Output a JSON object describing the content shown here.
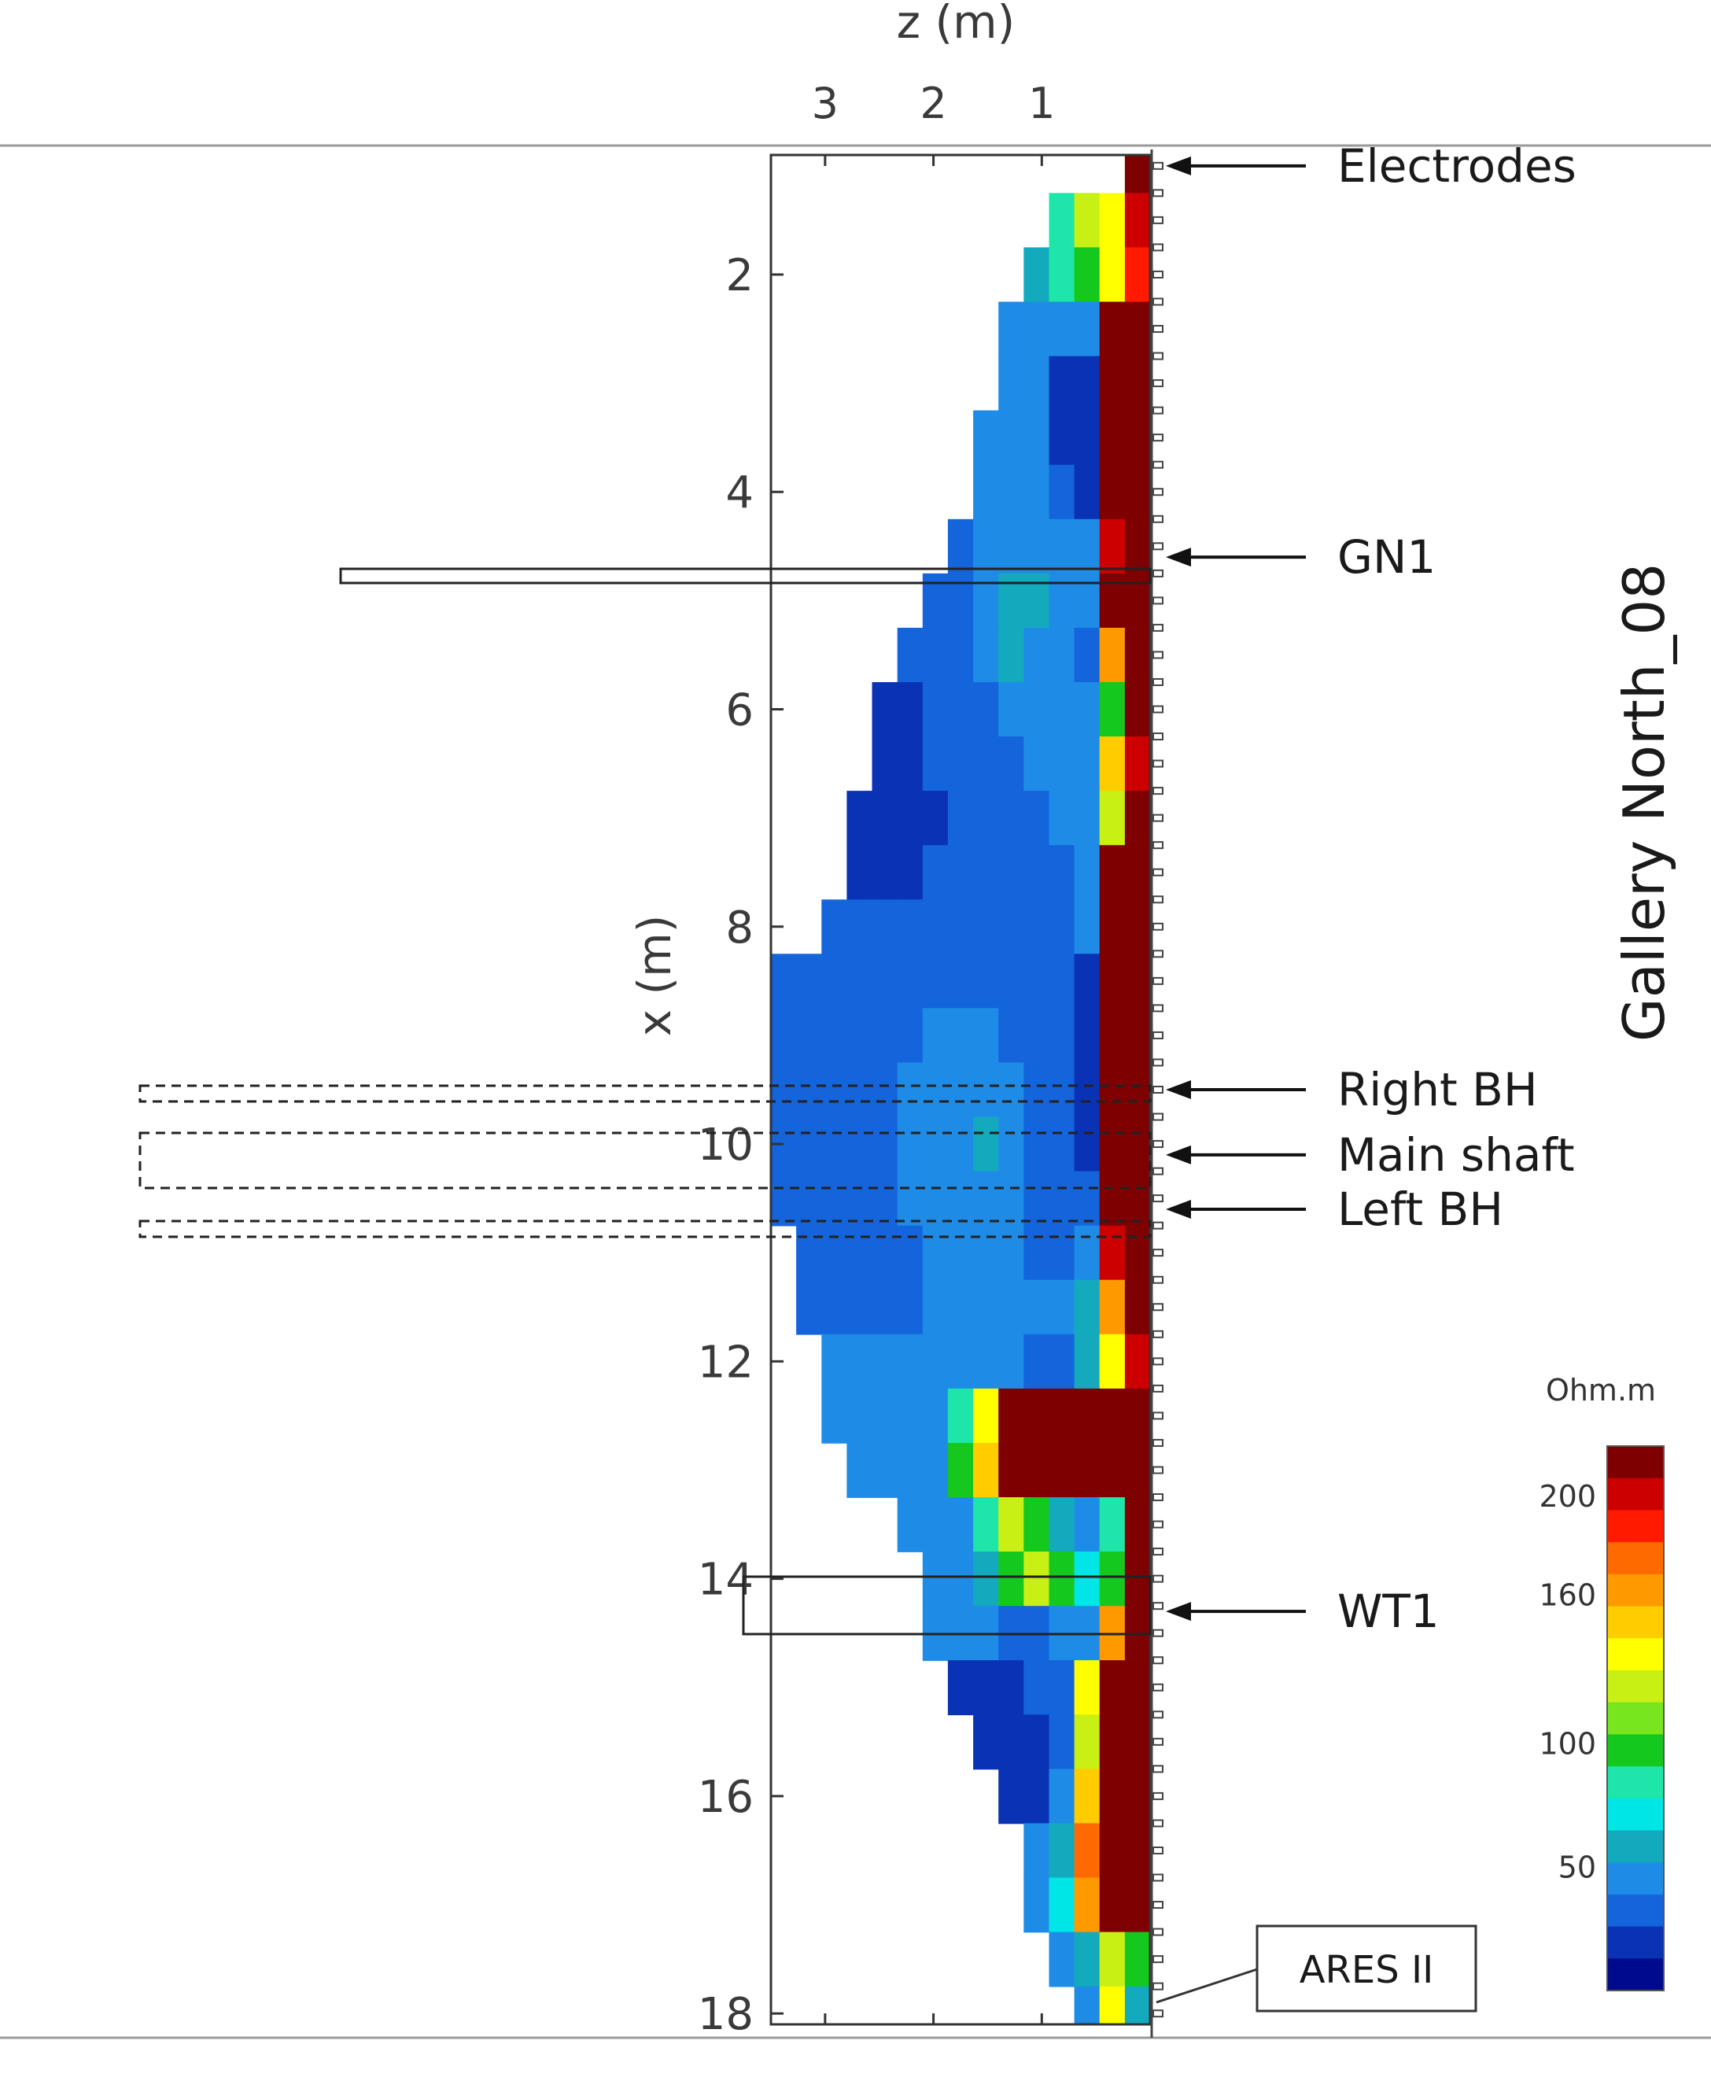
{
  "chart_data": {
    "type": "heatmap",
    "title": "",
    "side_label": "Gallery North_08",
    "xlabel": "z (m)",
    "ylabel": "x (m)",
    "x_ticks": [
      3,
      2,
      1
    ],
    "y_ticks": [
      2,
      4,
      6,
      8,
      10,
      12,
      14,
      16,
      18
    ],
    "xlim": [
      3.5,
      0
    ],
    "ylim": [
      0.9,
      18.1
    ],
    "colorbar": {
      "title": "Ohm.m",
      "tick_labels": [
        "200",
        "160",
        "100",
        "50"
      ],
      "tick_values": [
        200,
        160,
        100,
        50
      ],
      "range": [
        0,
        220
      ],
      "colors": [
        "#7f0000",
        "#cc0000",
        "#ff1a00",
        "#ff6a00",
        "#ff9900",
        "#ffcc00",
        "#ffff00",
        "#c8f014",
        "#78e61e",
        "#14c81e",
        "#1ee6aa",
        "#00e6e6",
        "#14aabe",
        "#1e8ce6",
        "#1464dc",
        "#0a32b4",
        "#000a8c"
      ]
    },
    "annotations": [
      {
        "label": "Electrodes",
        "x": 1.0
      },
      {
        "label": "GN1",
        "x": 4.6
      },
      {
        "label": "Right BH",
        "x": 9.5
      },
      {
        "label": "Main shaft",
        "x": 10.1
      },
      {
        "label": "Left BH",
        "x": 10.6
      },
      {
        "label": "WT1",
        "x": 14.3
      }
    ],
    "instrument_label": "ARES II",
    "resistivity_profile": [
      {
        "x": 1.0,
        "values": [
          0,
          0,
          0,
          0,
          0,
          0,
          0,
          0,
          0,
          0,
          0,
          0,
          0,
          0,
          220
        ]
      },
      {
        "x": 1.5,
        "values": [
          0,
          0,
          0,
          0,
          0,
          0,
          0,
          0,
          0,
          0,
          0,
          90,
          120,
          140,
          200
        ]
      },
      {
        "x": 2.0,
        "values": [
          0,
          0,
          0,
          0,
          0,
          0,
          0,
          0,
          0,
          0,
          60,
          80,
          100,
          130,
          190
        ]
      },
      {
        "x": 2.5,
        "values": [
          0,
          0,
          0,
          0,
          0,
          0,
          0,
          0,
          0,
          40,
          45,
          45,
          40,
          220,
          220
        ]
      },
      {
        "x": 3.0,
        "values": [
          0,
          0,
          0,
          0,
          0,
          0,
          0,
          0,
          0,
          40,
          40,
          20,
          20,
          220,
          220
        ]
      },
      {
        "x": 3.5,
        "values": [
          0,
          0,
          0,
          0,
          0,
          0,
          0,
          0,
          40,
          40,
          40,
          20,
          20,
          220,
          220
        ]
      },
      {
        "x": 4.0,
        "values": [
          0,
          0,
          0,
          0,
          0,
          0,
          0,
          0,
          45,
          45,
          40,
          35,
          20,
          220,
          220
        ]
      },
      {
        "x": 4.5,
        "values": [
          0,
          0,
          0,
          0,
          0,
          0,
          0,
          35,
          40,
          45,
          45,
          40,
          45,
          200,
          220
        ]
      },
      {
        "x": 5.0,
        "values": [
          0,
          0,
          0,
          0,
          0,
          0,
          35,
          35,
          40,
          60,
          55,
          40,
          45,
          220,
          220
        ]
      },
      {
        "x": 5.5,
        "values": [
          0,
          0,
          0,
          0,
          0,
          30,
          30,
          35,
          40,
          55,
          45,
          40,
          35,
          160,
          220
        ]
      },
      {
        "x": 6.0,
        "values": [
          0,
          0,
          0,
          0,
          25,
          25,
          30,
          35,
          35,
          40,
          40,
          40,
          40,
          100,
          220
        ]
      },
      {
        "x": 6.5,
        "values": [
          0,
          0,
          0,
          0,
          15,
          20,
          30,
          30,
          30,
          35,
          40,
          40,
          45,
          150,
          200
        ]
      },
      {
        "x": 7.0,
        "values": [
          0,
          0,
          0,
          15,
          15,
          20,
          25,
          30,
          30,
          30,
          35,
          40,
          45,
          120,
          220
        ]
      },
      {
        "x": 7.5,
        "values": [
          0,
          0,
          0,
          15,
          20,
          25,
          30,
          30,
          30,
          30,
          35,
          35,
          40,
          220,
          220
        ]
      },
      {
        "x": 8.0,
        "values": [
          0,
          0,
          30,
          30,
          30,
          30,
          30,
          30,
          30,
          30,
          30,
          35,
          40,
          220,
          220
        ]
      },
      {
        "x": 8.5,
        "values": [
          30,
          30,
          30,
          30,
          30,
          30,
          30,
          35,
          35,
          30,
          30,
          35,
          20,
          220,
          220
        ]
      },
      {
        "x": 9.0,
        "values": [
          30,
          30,
          30,
          30,
          30,
          35,
          40,
          40,
          40,
          35,
          30,
          30,
          20,
          220,
          220
        ]
      },
      {
        "x": 9.5,
        "values": [
          30,
          30,
          30,
          30,
          35,
          40,
          40,
          45,
          40,
          40,
          35,
          30,
          20,
          220,
          220
        ]
      },
      {
        "x": 10.0,
        "values": [
          30,
          30,
          30,
          30,
          35,
          40,
          45,
          45,
          55,
          40,
          35,
          30,
          25,
          220,
          220
        ]
      },
      {
        "x": 10.5,
        "values": [
          30,
          30,
          30,
          30,
          35,
          40,
          40,
          45,
          40,
          40,
          35,
          30,
          30,
          220,
          220
        ]
      },
      {
        "x": 11.0,
        "values": [
          0,
          30,
          30,
          30,
          30,
          35,
          40,
          40,
          40,
          40,
          35,
          35,
          45,
          200,
          220
        ]
      },
      {
        "x": 11.5,
        "values": [
          0,
          30,
          30,
          30,
          30,
          35,
          40,
          40,
          40,
          40,
          40,
          45,
          60,
          160,
          220
        ]
      },
      {
        "x": 12.0,
        "values": [
          0,
          0,
          40,
          40,
          40,
          40,
          40,
          40,
          40,
          40,
          35,
          35,
          60,
          140,
          200
        ]
      },
      {
        "x": 12.5,
        "values": [
          0,
          0,
          40,
          40,
          40,
          40,
          40,
          80,
          140,
          220,
          220,
          220,
          220,
          220,
          220
        ]
      },
      {
        "x": 13.0,
        "values": [
          0,
          0,
          0,
          40,
          40,
          40,
          40,
          100,
          150,
          220,
          220,
          220,
          220,
          220,
          220
        ]
      },
      {
        "x": 13.5,
        "values": [
          0,
          0,
          0,
          0,
          0,
          40,
          40,
          40,
          80,
          120,
          100,
          60,
          45,
          80,
          220
        ]
      },
      {
        "x": 14.0,
        "values": [
          0,
          0,
          0,
          0,
          0,
          0,
          40,
          40,
          60,
          100,
          120,
          100,
          70,
          100,
          220
        ]
      },
      {
        "x": 14.5,
        "values": [
          0,
          0,
          0,
          0,
          0,
          0,
          40,
          40,
          40,
          35,
          35,
          40,
          45,
          160,
          220
        ]
      },
      {
        "x": 15.0,
        "values": [
          0,
          0,
          0,
          0,
          0,
          0,
          0,
          20,
          20,
          20,
          30,
          30,
          130,
          220,
          220
        ]
      },
      {
        "x": 15.5,
        "values": [
          0,
          0,
          0,
          0,
          0,
          0,
          0,
          0,
          20,
          20,
          20,
          30,
          120,
          220,
          220
        ]
      },
      {
        "x": 16.0,
        "values": [
          0,
          0,
          0,
          0,
          0,
          0,
          0,
          0,
          0,
          20,
          20,
          40,
          150,
          220,
          220
        ]
      },
      {
        "x": 16.5,
        "values": [
          0,
          0,
          0,
          0,
          0,
          0,
          0,
          0,
          0,
          0,
          40,
          60,
          180,
          220,
          220
        ]
      },
      {
        "x": 17.0,
        "values": [
          0,
          0,
          0,
          0,
          0,
          0,
          0,
          0,
          0,
          0,
          40,
          70,
          160,
          220,
          220
        ]
      },
      {
        "x": 17.5,
        "values": [
          0,
          0,
          0,
          0,
          0,
          0,
          0,
          0,
          0,
          0,
          0,
          40,
          60,
          120,
          100
        ]
      },
      {
        "x": 18.0,
        "values": [
          0,
          0,
          0,
          0,
          0,
          0,
          0,
          0,
          0,
          0,
          0,
          0,
          40,
          140,
          60
        ]
      }
    ]
  }
}
